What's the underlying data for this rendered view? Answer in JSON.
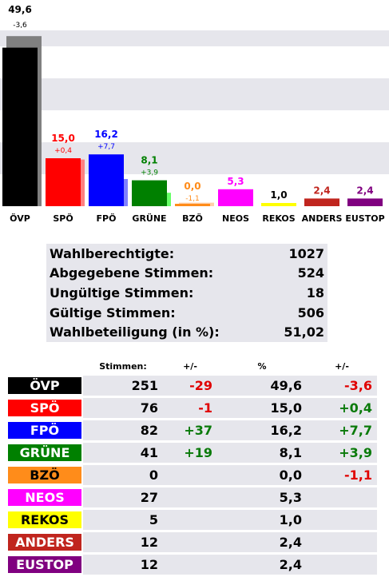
{
  "chart_data": {
    "type": "bar",
    "categories": [
      "ÖVP",
      "SPÖ",
      "FPÖ",
      "GRÜNE",
      "BZÖ",
      "NEOS",
      "REKOS",
      "ANDERS",
      "EUSTOP"
    ],
    "series": [
      {
        "values": [
          49.6,
          15.0,
          16.2,
          8.1,
          0.0,
          5.3,
          1.0,
          2.4,
          2.4
        ]
      },
      {
        "values": [
          53.2,
          14.6,
          8.5,
          4.2,
          1.1,
          0,
          0,
          0,
          0
        ]
      }
    ],
    "value_labels": [
      "49,6",
      "15,0",
      "16,2",
      "8,1",
      "0,0",
      "5,3",
      "1,0",
      "2,4",
      "2,4"
    ],
    "change_labels": [
      "-3,6",
      "+0,4",
      "+7,7",
      "+3,9",
      "-1,1",
      "",
      "",
      "",
      ""
    ],
    "colors": [
      "#000000",
      "#ff0000",
      "#0000ff",
      "#008000",
      "#ff8c1a",
      "#ff00ff",
      "#ffff00",
      "#c0251e",
      "#800080"
    ],
    "previous_colors": [
      "#808080",
      "#ff8080",
      "#8080ff",
      "#66ff66",
      "#ffd0a8",
      "",
      "",
      "",
      ""
    ],
    "label_colors": [
      "#000000",
      "#ff0000",
      "#0000ff",
      "#008000",
      "#ff8c1a",
      "#ff00ff",
      "#000000",
      "#c0251e",
      "#800080"
    ],
    "ylim": [
      0,
      55
    ],
    "grid": "alternating bands"
  },
  "summary": {
    "rows": [
      {
        "label": "Wahlberechtigte:",
        "value": "1027"
      },
      {
        "label": "Abgegebene Stimmen:",
        "value": "524"
      },
      {
        "label": "Ungültige Stimmen:",
        "value": "18"
      },
      {
        "label": "Gültige Stimmen:",
        "value": "506"
      },
      {
        "label": "Wahlbeteiligung (in %):",
        "value": "51,02"
      }
    ]
  },
  "results": {
    "headers": {
      "votes": "Stimmen:",
      "votes_change": "+/-",
      "percent": "%",
      "percent_change": "+/-"
    },
    "rows": [
      {
        "party": "ÖVP",
        "votes": "251",
        "votes_change": "-29",
        "percent": "49,6",
        "percent_change": "-3,6",
        "bg": "#000000",
        "fg": "#ffffff"
      },
      {
        "party": "SPÖ",
        "votes": "76",
        "votes_change": "-1",
        "percent": "15,0",
        "percent_change": "+0,4",
        "bg": "#ff0000",
        "fg": "#ffffff"
      },
      {
        "party": "FPÖ",
        "votes": "82",
        "votes_change": "+37",
        "percent": "16,2",
        "percent_change": "+7,7",
        "bg": "#0000ff",
        "fg": "#ffffff"
      },
      {
        "party": "GRÜNE",
        "votes": "41",
        "votes_change": "+19",
        "percent": "8,1",
        "percent_change": "+3,9",
        "bg": "#008000",
        "fg": "#ffffff"
      },
      {
        "party": "BZÖ",
        "votes": "0",
        "votes_change": "",
        "percent": "0,0",
        "percent_change": "-1,1",
        "bg": "#ff8c1a",
        "fg": "#000000"
      },
      {
        "party": "NEOS",
        "votes": "27",
        "votes_change": "",
        "percent": "5,3",
        "percent_change": "",
        "bg": "#ff00ff",
        "fg": "#ffffff"
      },
      {
        "party": "REKOS",
        "votes": "5",
        "votes_change": "",
        "percent": "1,0",
        "percent_change": "",
        "bg": "#ffff00",
        "fg": "#000000"
      },
      {
        "party": "ANDERS",
        "votes": "12",
        "votes_change": "",
        "percent": "2,4",
        "percent_change": "",
        "bg": "#c0251e",
        "fg": "#ffffff"
      },
      {
        "party": "EUSTOP",
        "votes": "12",
        "votes_change": "",
        "percent": "2,4",
        "percent_change": "",
        "bg": "#800080",
        "fg": "#ffffff"
      }
    ]
  }
}
